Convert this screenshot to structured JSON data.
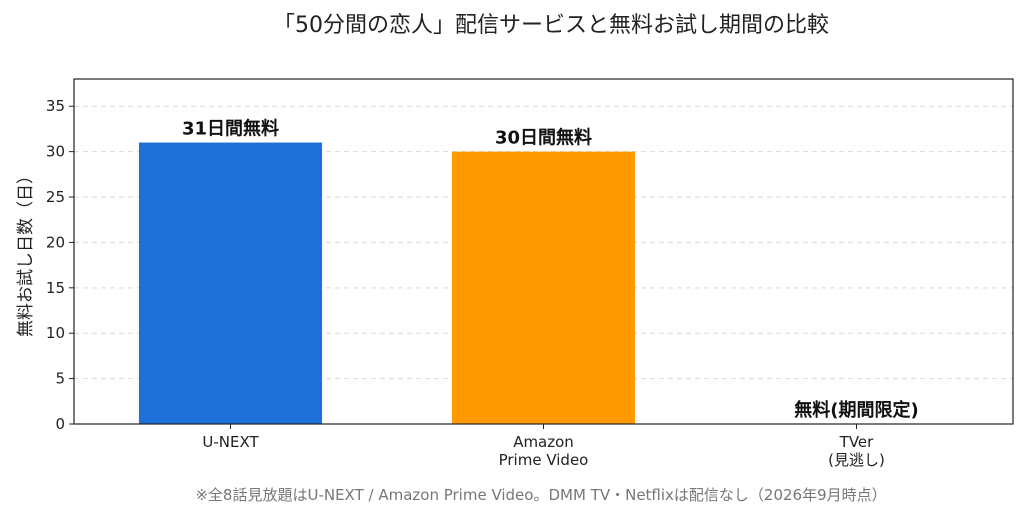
{
  "chart_data": {
    "type": "bar",
    "title": "「50分間の恋人」配信サービスと無料お試し期間の比較",
    "ylabel": "無料お試し日数（日）",
    "xlabel": "",
    "ylim": [
      0,
      38
    ],
    "yticks": [
      0,
      5,
      10,
      15,
      20,
      25,
      30,
      35
    ],
    "grid": true,
    "categories": [
      [
        "U-NEXT"
      ],
      [
        "Amazon",
        "Prime Video"
      ],
      [
        "TVer",
        "(見逃し)"
      ]
    ],
    "values": [
      31,
      30,
      0
    ],
    "colors": [
      "#1f6fd8",
      "#ff9900",
      "#1f6fd8"
    ],
    "data_labels": [
      "31日間無料",
      "30日間無料",
      "無料(期間限定)"
    ],
    "footnote": "※全8話見放題はU-NEXT / Amazon Prime Video。DMM TV・Netflixは配信なし（2026年9月時点）"
  }
}
